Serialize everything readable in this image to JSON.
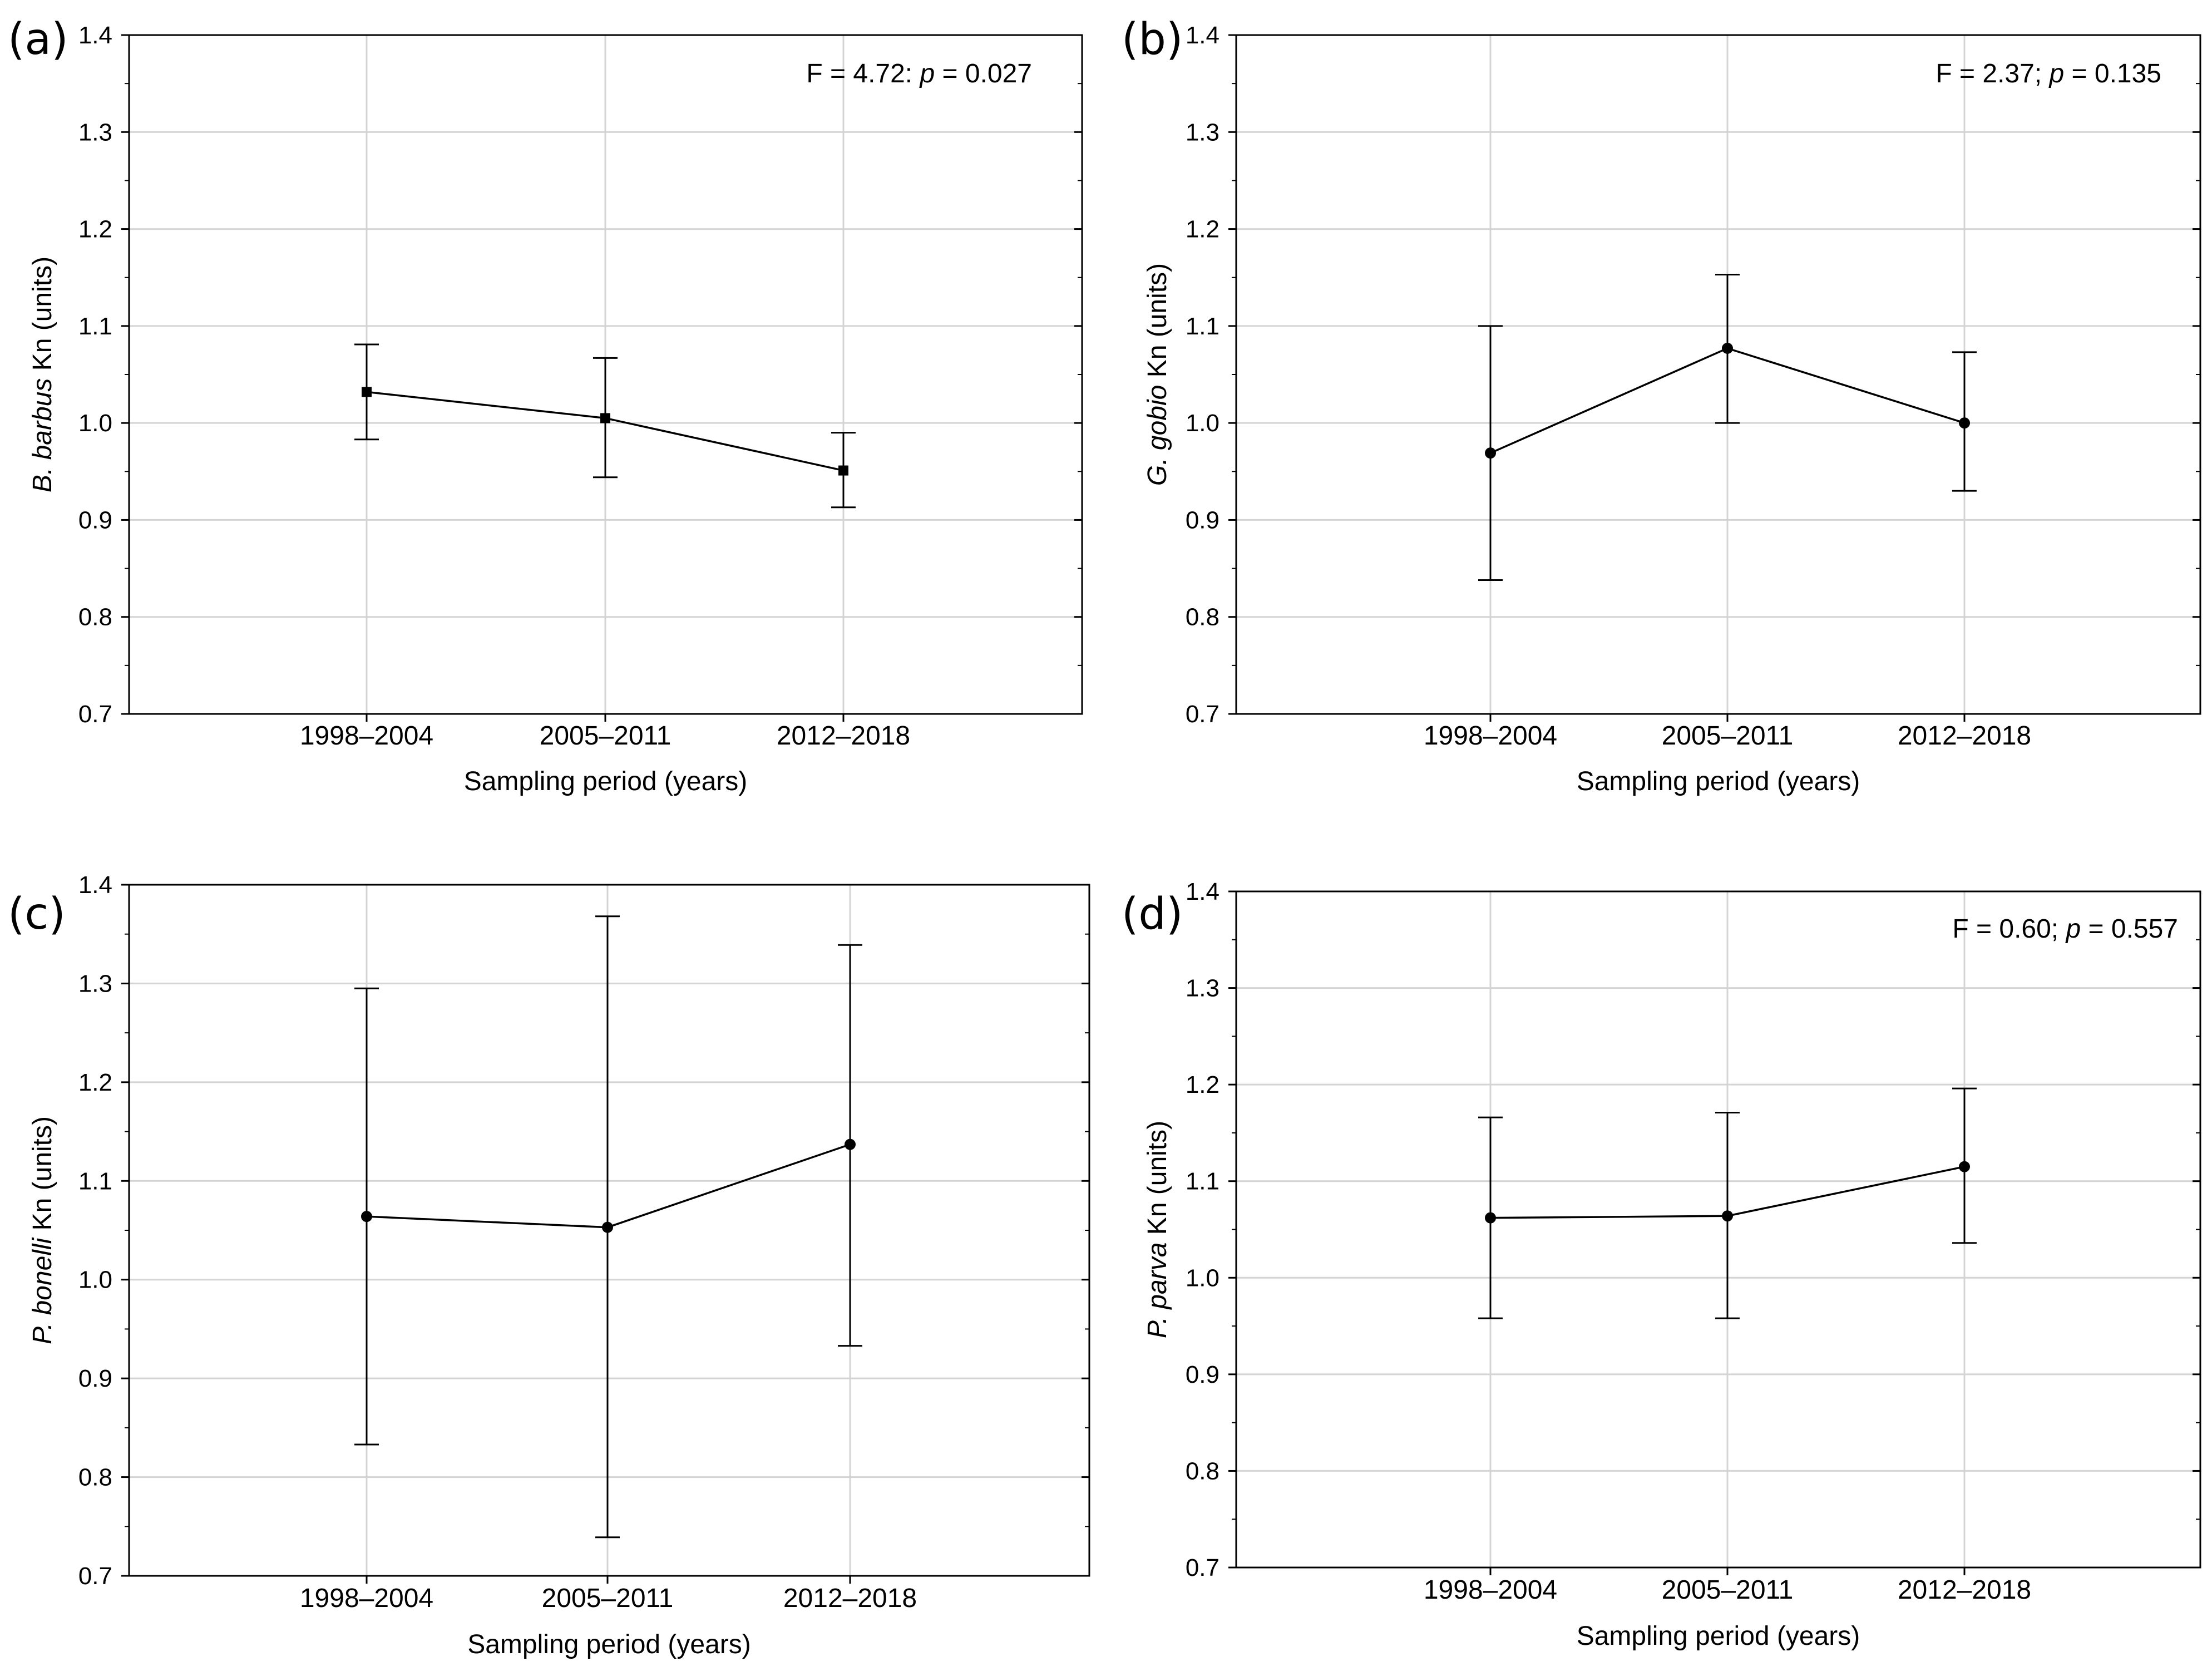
{
  "chart_data": [
    {
      "type": "line",
      "panel": "(a)",
      "species": "B. barbus",
      "ylabel_suffix": " Kn (units)",
      "xlabel": "Sampling period (years)",
      "annotation_prefix": "F = 4.72: ",
      "annotation_p": "p",
      "annotation_value": " = 0.027",
      "categories": [
        "1998–2004",
        "2005–2011",
        "2012–2018"
      ],
      "values": [
        1.032,
        1.005,
        0.951
      ],
      "error_lower": [
        0.983,
        0.944,
        0.913
      ],
      "error_upper": [
        1.081,
        1.067,
        0.99
      ],
      "ylim": [
        0.7,
        1.4
      ],
      "yticks": [
        "0.7",
        "0.8",
        "0.9",
        "1.0",
        "1.1",
        "1.2",
        "1.3",
        "1.4"
      ]
    },
    {
      "type": "line",
      "panel": "(b)",
      "species": "G. gobio",
      "ylabel_suffix": " Kn (units)",
      "xlabel": "Sampling period (years)",
      "annotation_prefix": "F = 2.37; ",
      "annotation_p": "p",
      "annotation_value": " = 0.135",
      "categories": [
        "1998–2004",
        "2005–2011",
        "2012–2018"
      ],
      "values": [
        0.969,
        1.077,
        1.0
      ],
      "error_lower": [
        0.838,
        1.0,
        0.93
      ],
      "error_upper": [
        1.1,
        1.153,
        1.073
      ],
      "ylim": [
        0.7,
        1.4
      ],
      "yticks": [
        "0.7",
        "0.8",
        "0.9",
        "1.0",
        "1.1",
        "1.2",
        "1.3",
        "1.4"
      ]
    },
    {
      "type": "line",
      "panel": "(c)",
      "species": "P. bonelli",
      "ylabel_suffix": " Kn (units)",
      "xlabel": "Sampling period (years)",
      "annotation_prefix": "",
      "annotation_p": "",
      "annotation_value": "",
      "categories": [
        "1998–2004",
        "2005–2011",
        "2012–2018"
      ],
      "values": [
        1.064,
        1.053,
        1.137
      ],
      "error_lower": [
        0.833,
        0.739,
        0.933
      ],
      "error_upper": [
        1.295,
        1.368,
        1.339
      ],
      "ylim": [
        0.7,
        1.4
      ],
      "yticks": [
        "0.7",
        "0.8",
        "0.9",
        "1.0",
        "1.1",
        "1.2",
        "1.3",
        "1.4"
      ]
    },
    {
      "type": "line",
      "panel": "(d)",
      "species": "P. parva",
      "ylabel_suffix": " Kn (units)",
      "xlabel": "Sampling period (years)",
      "annotation_prefix": "F = 0.60; ",
      "annotation_p": "p",
      "annotation_value": " = 0.557",
      "categories": [
        "1998–2004",
        "2005–2011",
        "2012–2018"
      ],
      "values": [
        1.062,
        1.064,
        1.115
      ],
      "error_lower": [
        0.958,
        0.958,
        1.036
      ],
      "error_upper": [
        1.166,
        1.171,
        1.196
      ],
      "ylim": [
        0.7,
        1.4
      ],
      "yticks": [
        "0.7",
        "0.8",
        "0.9",
        "1.0",
        "1.1",
        "1.2",
        "1.3",
        "1.4"
      ]
    }
  ]
}
